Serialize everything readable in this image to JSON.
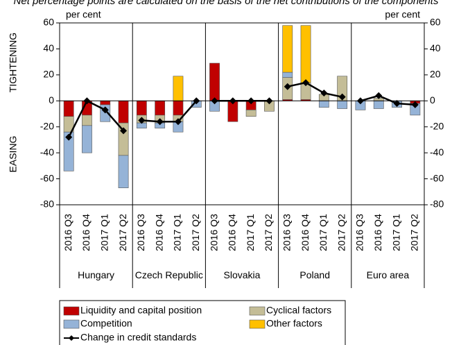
{
  "chart_data": {
    "type": "bar",
    "subtitle": "Net percentage points are calculated on the basis of the net contributions of the components",
    "y_unit_left": "per cent",
    "y_unit_right": "per cent",
    "upper_label": "TIGHTENING",
    "lower_label": "EASING",
    "categories": [
      "2016 Q3",
      "2016 Q4",
      "2017 Q1",
      "2017 Q2",
      "2016 Q3",
      "2016 Q4",
      "2017 Q1",
      "2017 Q2",
      "2016 Q3",
      "2016 Q4",
      "2017 Q1",
      "2017 Q2",
      "2016 Q3",
      "2016 Q4",
      "2017 Q1",
      "2017 Q2",
      "2016 Q3",
      "2016 Q4",
      "2017 Q1",
      "2017 Q2"
    ],
    "groups": [
      "Hungary",
      "Czech Republic",
      "Slovakia",
      "Poland",
      "Euro area"
    ],
    "series": [
      {
        "name": "Liquidity and capital position",
        "color": "#c00000",
        "values": [
          -12,
          -11,
          -3,
          -17,
          -11,
          -11,
          -11,
          0,
          29,
          -16,
          -7,
          0,
          1,
          1,
          0,
          0,
          0,
          0,
          0,
          -2
        ]
      },
      {
        "name": "Cyclical factors",
        "color": "#c4bd97",
        "values": [
          -12,
          -8,
          0,
          -25,
          -6,
          -6,
          -5,
          0,
          0,
          0,
          -5,
          -8,
          17,
          13,
          5,
          19,
          0,
          2,
          0,
          0
        ]
      },
      {
        "name": "Competition",
        "color": "#95b3d7",
        "values": [
          -30,
          -21,
          -13,
          -25,
          -4,
          -4,
          -8,
          -5,
          -8,
          0,
          0,
          0,
          4,
          0,
          -5,
          -6,
          -7,
          -6,
          -5,
          -9
        ]
      },
      {
        "name": "Other factors",
        "color": "#ffc000",
        "values": [
          0,
          0,
          0,
          0,
          0,
          0,
          19,
          0,
          0,
          0,
          0,
          0,
          36,
          44,
          0,
          0,
          0,
          0,
          0,
          0
        ]
      },
      {
        "name": "Change in credit standards",
        "color": "#000000",
        "type": "line",
        "values": [
          -28,
          0,
          -7,
          -23,
          -15,
          -16,
          -16,
          0,
          0,
          0,
          0,
          0,
          11,
          14,
          6,
          3,
          0,
          4,
          -2,
          -3
        ]
      }
    ],
    "ylim": [
      -80,
      60
    ],
    "yticks": [
      -80,
      -60,
      -40,
      -20,
      0,
      20,
      40,
      60
    ],
    "y2lim": [
      -80,
      60
    ],
    "y2ticks": [
      -80,
      -60,
      -40,
      -20,
      0,
      20,
      40,
      60
    ]
  }
}
